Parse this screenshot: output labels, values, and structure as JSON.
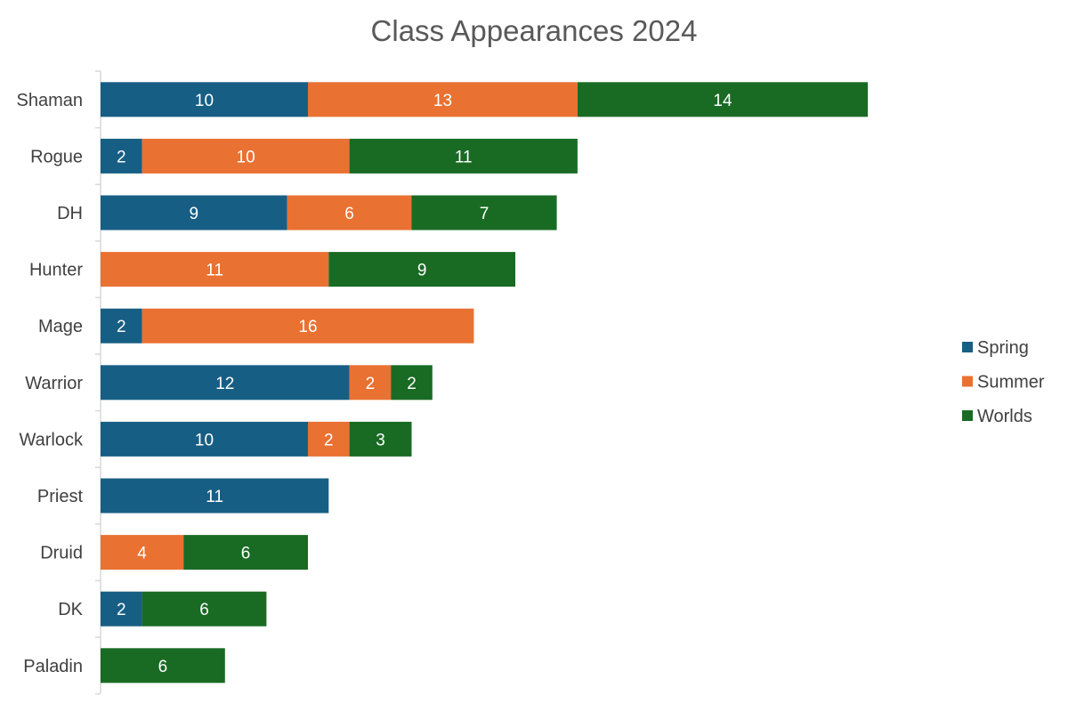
{
  "chart_data": {
    "type": "bar",
    "orientation": "horizontal",
    "stacked": true,
    "title": "Class Appearances 2024",
    "xlabel": "",
    "ylabel": "",
    "categories": [
      "Shaman",
      "Rogue",
      "DH",
      "Hunter",
      "Mage",
      "Warrior",
      "Warlock",
      "Priest",
      "Druid",
      "DK",
      "Paladin"
    ],
    "series": [
      {
        "name": "Spring",
        "color": "#175e84",
        "values": [
          10,
          2,
          9,
          0,
          2,
          12,
          10,
          11,
          0,
          2,
          0
        ]
      },
      {
        "name": "Summer",
        "color": "#e97132",
        "values": [
          13,
          10,
          6,
          11,
          16,
          2,
          2,
          0,
          4,
          0,
          0
        ]
      },
      {
        "name": "Worlds",
        "color": "#196b24",
        "values": [
          14,
          11,
          7,
          9,
          0,
          2,
          3,
          0,
          6,
          6,
          6
        ]
      }
    ],
    "xlim": [
      0,
      46
    ],
    "grid": false,
    "legend_position": "right",
    "data_labels": true
  }
}
